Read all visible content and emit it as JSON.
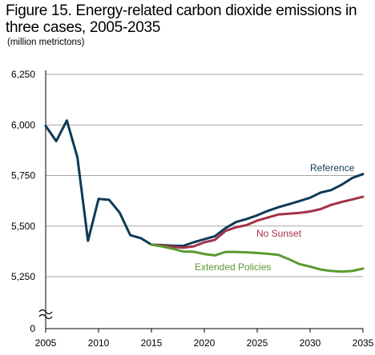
{
  "header": {
    "title": "Figure 15. Energy-related carbon dioxide emissions in three cases, 2005-2035",
    "unit": "(million metrictons)"
  },
  "chart_data": {
    "type": "line",
    "title": "Figure 15. Energy-related carbon dioxide emissions in three cases, 2005-2035",
    "ylabel": "(million metrictons)",
    "xlabel": "",
    "xlim": [
      2005,
      2035
    ],
    "ylim": [
      5250,
      6250
    ],
    "axis_break": true,
    "x_ticks": [
      2005,
      2010,
      2015,
      2020,
      2025,
      2030,
      2035
    ],
    "y_ticks": [
      {
        "value": 5250,
        "label": "5,250"
      },
      {
        "value": 5500,
        "label": "5,500"
      },
      {
        "value": 5750,
        "label": "5,750"
      },
      {
        "value": 6000,
        "label": "6,000"
      },
      {
        "value": 6250,
        "label": "6,250"
      }
    ],
    "y_zero_label": "0",
    "grid": "horizontal",
    "series": [
      {
        "name": "Reference",
        "color": "#0d3a57",
        "x": [
          2005,
          2006,
          2007,
          2008,
          2009,
          2010,
          2011,
          2012,
          2013,
          2014,
          2015,
          2016,
          2017,
          2018,
          2019,
          2020,
          2021,
          2022,
          2023,
          2024,
          2025,
          2026,
          2027,
          2028,
          2029,
          2030,
          2031,
          2032,
          2033,
          2034,
          2035
        ],
        "values": [
          5995,
          5920,
          6022,
          5840,
          5427,
          5634,
          5630,
          5566,
          5455,
          5440,
          5408,
          5406,
          5403,
          5402,
          5420,
          5435,
          5450,
          5490,
          5520,
          5535,
          5553,
          5575,
          5593,
          5608,
          5624,
          5640,
          5666,
          5678,
          5705,
          5738,
          5757
        ]
      },
      {
        "name": "No Sunset",
        "color": "#a23248",
        "x": [
          2015,
          2016,
          2017,
          2018,
          2019,
          2020,
          2021,
          2022,
          2023,
          2024,
          2025,
          2026,
          2027,
          2028,
          2029,
          2030,
          2031,
          2032,
          2033,
          2034,
          2035
        ],
        "values": [
          5408,
          5404,
          5398,
          5393,
          5400,
          5420,
          5432,
          5476,
          5494,
          5505,
          5527,
          5542,
          5557,
          5561,
          5565,
          5572,
          5584,
          5605,
          5619,
          5632,
          5645
        ]
      },
      {
        "name": "Extended Policies",
        "color": "#5a9a2f",
        "x": [
          2015,
          2016,
          2017,
          2018,
          2019,
          2020,
          2021,
          2022,
          2023,
          2024,
          2025,
          2026,
          2027,
          2028,
          2029,
          2030,
          2031,
          2032,
          2033,
          2034,
          2035
        ],
        "values": [
          5408,
          5400,
          5388,
          5374,
          5373,
          5362,
          5355,
          5372,
          5372,
          5370,
          5367,
          5363,
          5358,
          5336,
          5312,
          5300,
          5285,
          5278,
          5275,
          5278,
          5290
        ]
      }
    ],
    "annotations": [
      {
        "text": "Reference",
        "series": "Reference"
      },
      {
        "text": "No Sunset",
        "series": "No Sunset"
      },
      {
        "text": "Extended Policies",
        "series": "Extended Policies"
      }
    ]
  }
}
